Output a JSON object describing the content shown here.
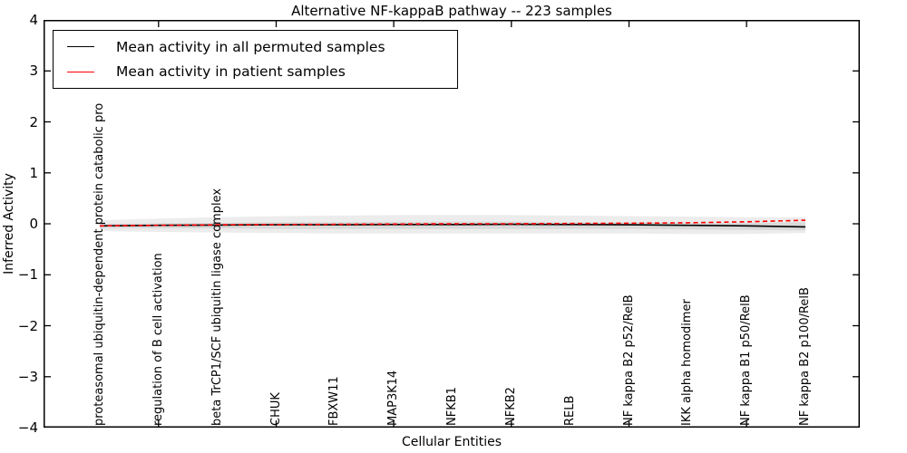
{
  "chart_data": {
    "type": "line",
    "title": "Alternative NF-kappaB pathway -- 223 samples",
    "xlabel": "Cellular Entities",
    "ylabel": "Inferred Activity",
    "ylim": [
      -4,
      4
    ],
    "grid": false,
    "ytick_values": [
      4,
      3,
      2,
      1,
      0,
      -1,
      -2,
      -3,
      -4
    ],
    "ytick_labels": [
      "4",
      "3",
      "2",
      "1",
      "0",
      "−1",
      "−2",
      "−3",
      "−4"
    ],
    "xtick_marks_at_category_index": [
      1,
      3,
      5,
      7,
      9,
      11
    ],
    "categories": [
      "proteasomal ubiquitin-dependent protein catabolic pro",
      "regulation of B cell activation",
      "beta TrCP1/SCF ubiquitin ligase complex",
      "CHUK",
      "FBXW11",
      "MAP3K14",
      "NFKB1",
      "NFKB2",
      "RELB",
      "NF kappa B2 p52/RelB",
      "IKK alpha homodimer",
      "NF kappa B1 p50/RelB",
      "NF kappa B2 p100/RelB"
    ],
    "series": [
      {
        "name": "Mean activity in all permuted samples",
        "color": "#000000",
        "style": "solid",
        "values": [
          -0.04,
          -0.03,
          -0.025,
          -0.02,
          -0.02,
          -0.015,
          -0.015,
          -0.01,
          -0.015,
          -0.02,
          -0.03,
          -0.04,
          -0.06
        ]
      },
      {
        "name": "Mean activity in patient samples",
        "color": "#ff0000",
        "style": "dashed",
        "values": [
          -0.04,
          -0.03,
          -0.02,
          -0.015,
          -0.01,
          -0.005,
          0.0,
          0.0,
          0.005,
          0.01,
          0.02,
          0.04,
          0.07
        ]
      }
    ],
    "bands": [
      {
        "name": "permuted-activity-outer-band",
        "color": "#ececec",
        "top": [
          0.07,
          0.1,
          0.13,
          0.15,
          0.16,
          0.17,
          0.17,
          0.17,
          0.16,
          0.15,
          0.14,
          0.13,
          0.13
        ],
        "bottom": [
          -0.14,
          -0.16,
          -0.17,
          -0.18,
          -0.19,
          -0.19,
          -0.19,
          -0.19,
          -0.19,
          -0.19,
          -0.2,
          -0.2,
          -0.18
        ]
      },
      {
        "name": "permuted-activity-inner-band",
        "color": "#d9d9d9",
        "top": [
          0.0,
          0.01,
          0.02,
          0.03,
          0.03,
          0.04,
          0.04,
          0.04,
          0.03,
          0.03,
          0.02,
          0.02,
          0.03
        ],
        "bottom": [
          -0.09,
          -0.09,
          -0.09,
          -0.1,
          -0.1,
          -0.1,
          -0.1,
          -0.1,
          -0.1,
          -0.1,
          -0.11,
          -0.12,
          -0.13
        ]
      }
    ],
    "legend": {
      "position": "upper-left"
    },
    "axis_color": "#000000"
  }
}
